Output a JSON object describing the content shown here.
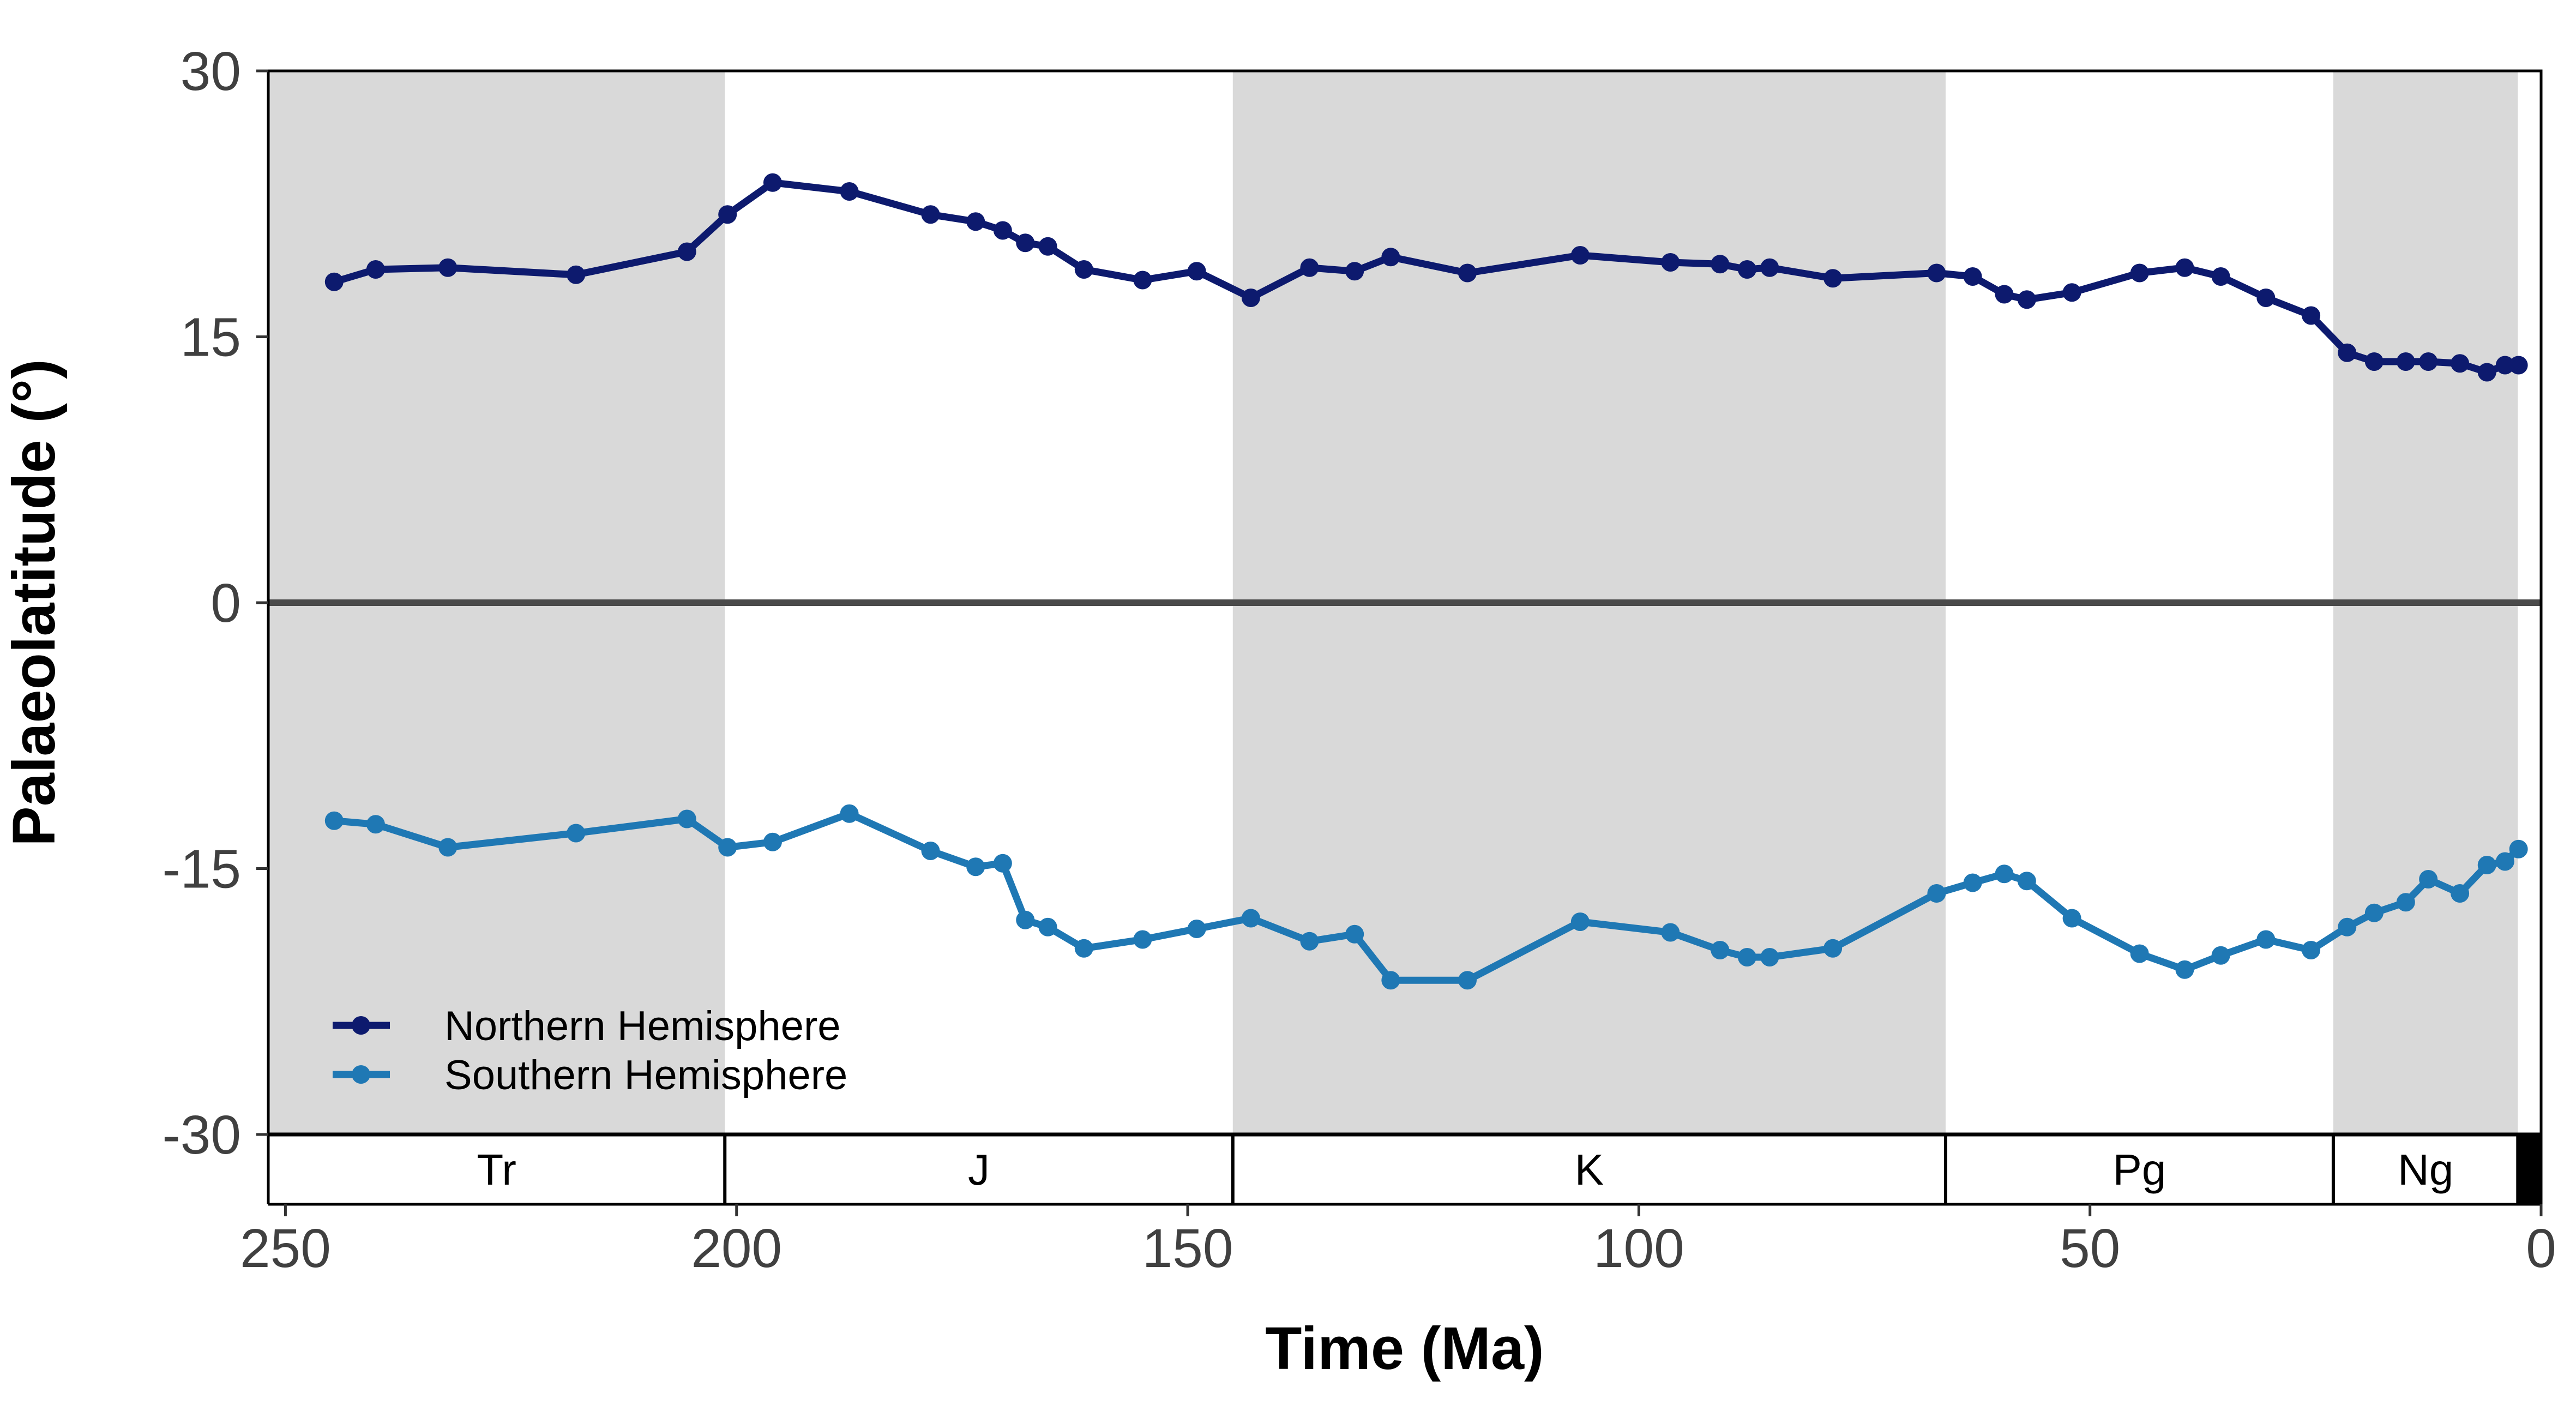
{
  "chart_data": {
    "type": "line",
    "xlabel": "Time (Ma)",
    "ylabel": "Palaeolatitude (°)",
    "xlim": [
      251.9,
      0
    ],
    "ylim": [
      -30,
      30
    ],
    "x_ticks": [
      250,
      200,
      150,
      100,
      50,
      0
    ],
    "y_ticks": [
      30,
      15,
      0,
      -15,
      -30
    ],
    "grid": false,
    "legend_position": "bottom-left",
    "reference_line": {
      "y": 0,
      "color": "#4a4a4a"
    },
    "shading_color": "#d9d9d9",
    "periods": [
      {
        "label": "Tr",
        "start": 251.9,
        "end": 201.3,
        "shaded": true
      },
      {
        "label": "J",
        "start": 201.3,
        "end": 145,
        "shaded": false
      },
      {
        "label": "K",
        "start": 145,
        "end": 66,
        "shaded": true
      },
      {
        "label": "Pg",
        "start": 66,
        "end": 23.03,
        "shaded": false
      },
      {
        "label": "Ng",
        "start": 23.03,
        "end": 2.58,
        "shaded": true
      },
      {
        "label": "",
        "start": 2.58,
        "end": 0,
        "shaded": false,
        "fill": "#000000"
      }
    ],
    "series": [
      {
        "name": "Northern Hemisphere",
        "color": "#0d1a6e",
        "x": [
          244.6,
          240,
          232,
          217.8,
          205.5,
          201,
          196,
          187.5,
          178.5,
          173.5,
          170.5,
          168,
          165.5,
          161.5,
          155,
          149,
          143,
          136.5,
          131.5,
          127.5,
          119,
          106.5,
          96.5,
          91,
          88,
          85.5,
          78.5,
          67,
          63,
          59.5,
          57,
          52,
          44.5,
          39.5,
          35.5,
          30.5,
          25.5,
          21.5,
          18.5,
          15,
          12.5,
          9,
          6,
          4,
          2.5
        ],
        "y": [
          18.1,
          18.8,
          18.9,
          18.5,
          19.8,
          21.9,
          23.7,
          23.2,
          21.9,
          21.5,
          21.0,
          20.3,
          20.1,
          18.8,
          18.2,
          18.7,
          17.2,
          18.9,
          18.7,
          19.5,
          18.6,
          19.6,
          19.2,
          19.1,
          18.8,
          18.9,
          18.3,
          18.6,
          18.4,
          17.4,
          17.1,
          17.5,
          18.6,
          18.9,
          18.4,
          17.2,
          16.2,
          14.1,
          13.6,
          13.6,
          13.6,
          13.5,
          13.0,
          13.4,
          13.4
        ]
      },
      {
        "name": "Southern Hemisphere",
        "color": "#1f78b4",
        "x": [
          244.6,
          240,
          232,
          217.8,
          205.5,
          201,
          196,
          187.5,
          178.5,
          173.5,
          170.5,
          168,
          165.5,
          161.5,
          155,
          149,
          143,
          136.5,
          131.5,
          127.5,
          119,
          106.5,
          96.5,
          91,
          88,
          85.5,
          78.5,
          67,
          63,
          59.5,
          57,
          52,
          44.5,
          39.5,
          35.5,
          30.5,
          25.5,
          21.5,
          18.5,
          15,
          12.5,
          9,
          6,
          4,
          2.5
        ],
        "y": [
          -12.3,
          -12.5,
          -13.8,
          -13.0,
          -12.2,
          -13.8,
          -13.5,
          -11.9,
          -14.0,
          -14.9,
          -14.7,
          -17.9,
          -18.3,
          -19.5,
          -19.0,
          -18.4,
          -17.8,
          -19.1,
          -18.7,
          -21.3,
          -21.3,
          -18.0,
          -18.6,
          -19.6,
          -20.0,
          -20.0,
          -19.5,
          -16.4,
          -15.8,
          -15.3,
          -15.7,
          -17.8,
          -19.8,
          -20.7,
          -19.9,
          -19.0,
          -19.6,
          -18.3,
          -17.5,
          -16.9,
          -15.6,
          -16.4,
          -14.8,
          -14.6,
          -13.9
        ]
      }
    ]
  }
}
